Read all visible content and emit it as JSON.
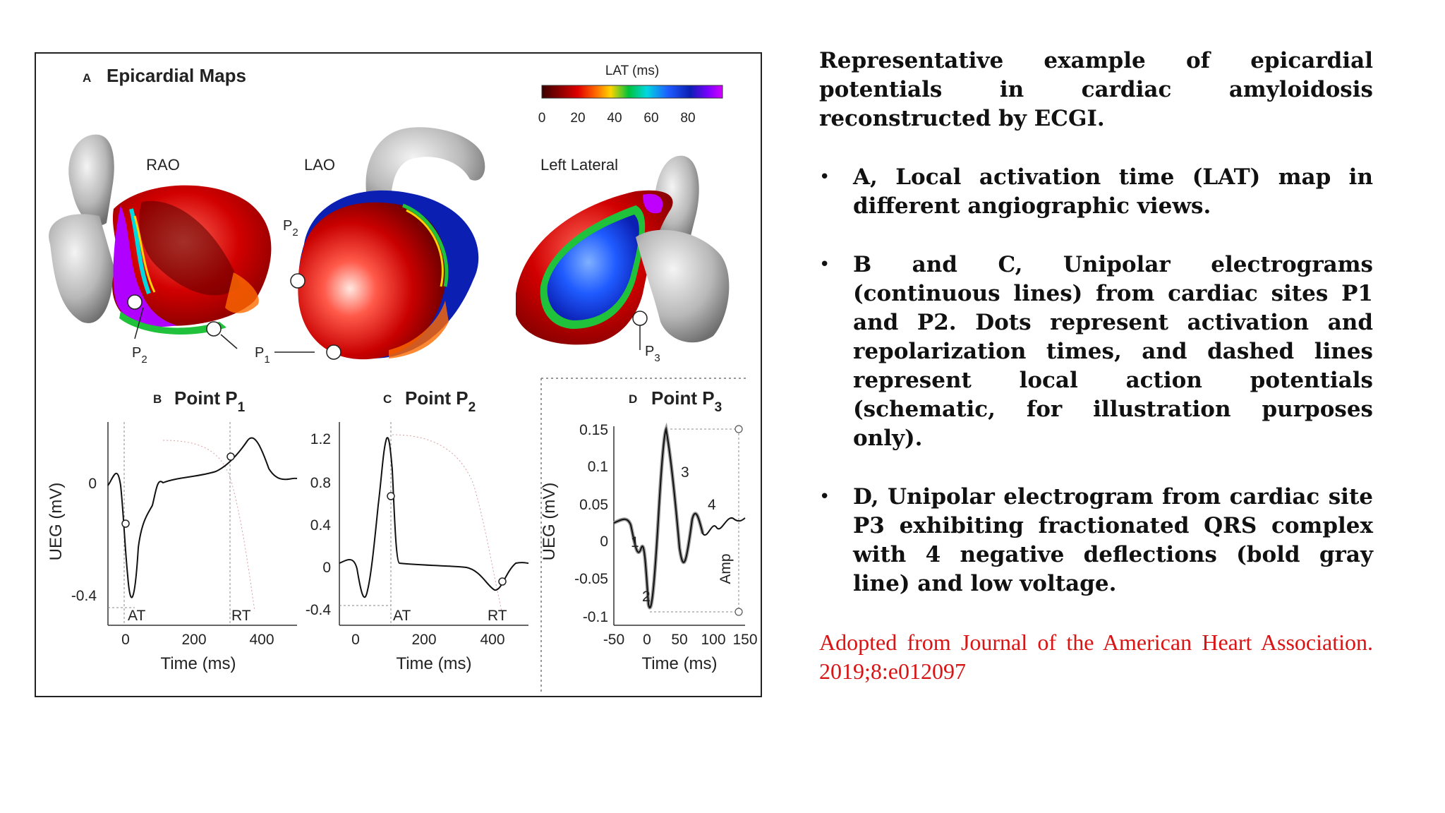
{
  "figure": {
    "panel_a": {
      "letter": "A",
      "title": "Epicardial Maps",
      "views": [
        "RAO",
        "LAO",
        "Left Lateral"
      ],
      "colorbar": {
        "title": "LAT (ms)",
        "ticks": [
          "0",
          "20",
          "40",
          "60",
          "80"
        ],
        "colors": [
          "#3a0000",
          "#8b0000",
          "#e00000",
          "#ff6a00",
          "#ffd400",
          "#00c23a",
          "#00d8e0",
          "#1f5bff",
          "#0b1fb3",
          "#7a00ff",
          "#d200ff"
        ]
      },
      "point_labels": {
        "p2_rao": "P",
        "p2_rao_sub": "2",
        "p1": "P",
        "p1_sub": "1",
        "p2_lao": "P",
        "p2_lao_sub": "2",
        "p3": "P",
        "p3_sub": "3"
      }
    },
    "panel_b": {
      "letter": "B",
      "title": "Point P",
      "title_sub": "1",
      "ylabel": "UEG (mV)",
      "xlabel": "Time (ms)",
      "yticks": [
        "0",
        "-0.4"
      ],
      "xticks": [
        "0",
        "200",
        "400"
      ],
      "markers": [
        "AT",
        "RT"
      ]
    },
    "panel_c": {
      "letter": "C",
      "title": "Point P",
      "title_sub": "2",
      "xlabel": "Time (ms)",
      "yticks": [
        "1.2",
        "0.8",
        "0.4",
        "0",
        "-0.4"
      ],
      "xticks": [
        "0",
        "200",
        "400"
      ],
      "markers": [
        "AT",
        "RT"
      ]
    },
    "panel_d": {
      "letter": "D",
      "title": "Point P",
      "title_sub": "3",
      "ylabel": "UEG (mV)",
      "xlabel": "Time (ms)",
      "yticks": [
        "0.15",
        "0.1",
        "0.05",
        "0",
        "-0.05",
        "-0.1"
      ],
      "xticks": [
        "-50",
        "0",
        "50",
        "100",
        "150"
      ],
      "deflections": [
        "1",
        "2",
        "3",
        "4"
      ],
      "amp_label": "Amp"
    }
  },
  "caption": {
    "lead": "Representative example of epicardial potentials in cardiac amyloidosis reconstructed by ECGI.",
    "bullet_char": "•",
    "bullets": [
      "A, Local activation time (LAT) map in different angiographic views.",
      "B and C, Unipolar electrograms (continuous lines) from cardiac sites P1 and P2. Dots represent activation and repolarization times, and dashed lines represent local action potentials (schematic, for illustration purposes only).",
      "D, Unipolar electrogram from cardiac site P3 exhibiting fractionated QRS complex with 4 negative deflections (bold gray line) and low voltage."
    ],
    "credit": "Adopted from Journal of the American Heart Association. 2019;8:e012097"
  }
}
